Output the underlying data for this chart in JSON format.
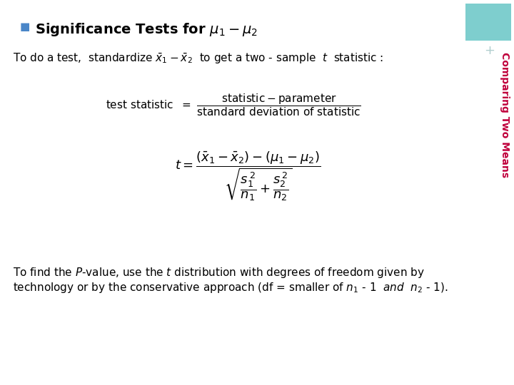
{
  "title": "Significance Tests for $\\mu_1 - \\mu_2$",
  "title_bullet_color": "#4a86c8",
  "background_color": "#ffffff",
  "sidebar_color": "#7ecece",
  "sidebar_text_color": "#c0003c",
  "sidebar_plus_color": "#b0cece",
  "line1": "To do a test,  standardize $\\bar{x}_1 - \\bar{x}_2$  to get a two - sample  $t$  statistic :",
  "bottom_text_line1": "To find the $P$-value, use the $t$ distribution with degrees of freedom given by",
  "bottom_text_line2": "technology or by the conservative approach (df = smaller of $n_1$ - 1  $\\mathit{and}$  $n_2$ - 1).",
  "main_font_size": 11,
  "title_font_size": 14,
  "sidebar_font_size": 10,
  "formula_font_size": 13
}
